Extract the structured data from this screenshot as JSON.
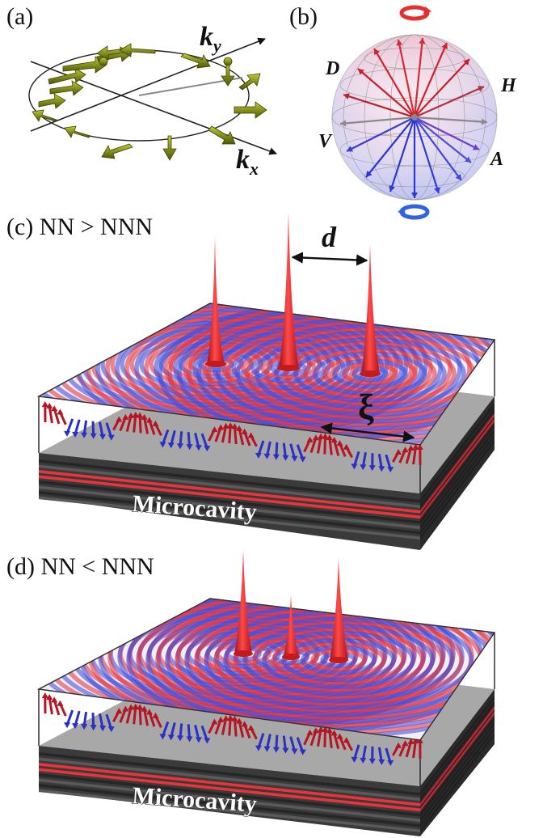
{
  "panels": {
    "a": {
      "label": "(a)",
      "kx": "k",
      "kx_sub": "x",
      "ky": "k",
      "ky_sub": "y"
    },
    "b": {
      "label": "(b)",
      "points": {
        "D": "D",
        "H": "H",
        "V": "V",
        "A": "A"
      }
    },
    "c": {
      "label": "(c) NN > NNN",
      "d_label": "d",
      "xi_label": "ξ",
      "base_label": "Microcavity"
    },
    "d": {
      "label": "(d) NN < NNN",
      "base_label": "Microcavity"
    }
  },
  "colors": {
    "red": "#e02020",
    "blue": "#2a3bd8",
    "arrow_green": "#6f7a10",
    "slab_gray": "#9a9a9a",
    "layer_dark": "#3a3a3a",
    "layer_red": "#e8343a"
  },
  "icons": [
    "circular-arrow-icon-red",
    "circular-arrow-icon-blue"
  ]
}
